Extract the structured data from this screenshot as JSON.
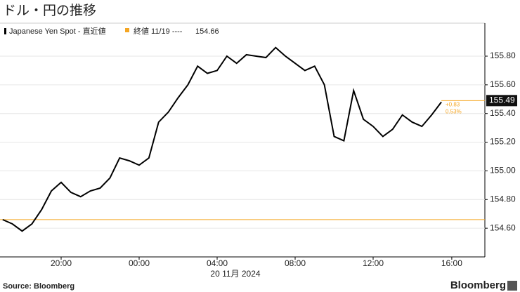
{
  "chart_data": {
    "type": "line",
    "title": "ドル・円の推移",
    "categories": [
      null,
      null,
      null,
      null,
      null,
      null,
      "20:00",
      null,
      null,
      null,
      null,
      null,
      null,
      null,
      "00:00",
      null,
      null,
      null,
      null,
      null,
      null,
      null,
      "04:00",
      null,
      null,
      null,
      null,
      null,
      null,
      null,
      "08:00",
      null,
      null,
      null,
      null,
      null,
      null,
      null,
      "12:00",
      null,
      null,
      null,
      null,
      null,
      null,
      null
    ],
    "x_label": "20 11月 2024",
    "series": [
      {
        "name": "Japanese Yen Spot - 直近値",
        "color": "#000000",
        "values": [
          154.66,
          154.63,
          154.58,
          154.63,
          154.73,
          154.86,
          154.92,
          154.85,
          154.82,
          154.86,
          154.88,
          154.95,
          155.09,
          155.07,
          155.04,
          155.09,
          155.34,
          155.41,
          155.51,
          155.6,
          155.73,
          155.68,
          155.7,
          155.8,
          155.75,
          155.81,
          155.8,
          155.79,
          155.86,
          155.8,
          155.75,
          155.7,
          155.73,
          155.6,
          155.24,
          155.21,
          155.56,
          155.36,
          155.31,
          155.24,
          155.29,
          155.39,
          155.34,
          155.31,
          155.39,
          155.48
        ]
      }
    ],
    "x_extra_ticks": [
      "16:00"
    ],
    "reference": {
      "name": "終値 11/19 ----",
      "value": 154.66,
      "color": "#f5a623"
    },
    "last_price": 155.49,
    "change": {
      "value": 0.83,
      "label": "+0.83"
    },
    "change_pct": {
      "value": 0.53,
      "label": "0.53%"
    },
    "ylim": [
      154.4,
      156.03
    ],
    "yticks": [
      {
        "value": 154.6,
        "label": "154.60"
      },
      {
        "value": 154.8,
        "label": "154.80"
      },
      {
        "value": 155.0,
        "label": "155.00"
      },
      {
        "value": 155.2,
        "label": "155.20"
      },
      {
        "value": 155.4,
        "label": "155.40"
      },
      {
        "value": 155.6,
        "label": "155.60"
      },
      {
        "value": 155.8,
        "label": "155.80"
      }
    ],
    "grid": true,
    "source": "Source: Bloomberg",
    "brand": "Bloomberg"
  }
}
